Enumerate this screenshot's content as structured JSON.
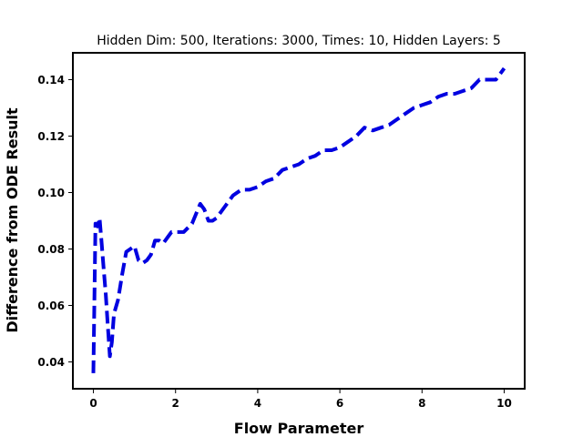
{
  "chart_data": {
    "type": "line",
    "title": "Hidden Dim: 500, Iterations: 3000, Times: 10, Hidden Layers: 5",
    "xlabel": "Flow Parameter",
    "ylabel": "Difference from ODE Result",
    "xlim": [
      -0.5,
      10.5
    ],
    "ylim": [
      0.0305,
      0.1495
    ],
    "xticks": [
      0,
      2,
      4,
      6,
      8,
      10
    ],
    "yticks": [
      0.04,
      0.06,
      0.08,
      0.1,
      0.12,
      0.14
    ],
    "xtick_labels": [
      "0",
      "2",
      "4",
      "6",
      "8",
      "10"
    ],
    "ytick_labels": [
      "0.04",
      "0.06",
      "0.08",
      "0.10",
      "0.12",
      "0.14"
    ],
    "grid": false,
    "line_style": "dashed",
    "line_color": "#0000e0",
    "series": [
      {
        "x": [
          0.0,
          0.05,
          0.1,
          0.15,
          0.2,
          0.25,
          0.3,
          0.35,
          0.4,
          0.45,
          0.5,
          0.6,
          0.7,
          0.8,
          0.9,
          1.0,
          1.1,
          1.2,
          1.3,
          1.4,
          1.5,
          1.6,
          1.7,
          1.8,
          1.9,
          2.0,
          2.2,
          2.4,
          2.6,
          2.7,
          2.8,
          2.9,
          3.0,
          3.2,
          3.4,
          3.6,
          3.8,
          4.0,
          4.2,
          4.4,
          4.6,
          4.8,
          5.0,
          5.2,
          5.4,
          5.6,
          5.8,
          6.0,
          6.2,
          6.4,
          6.6,
          6.8,
          7.0,
          7.2,
          7.4,
          7.6,
          7.8,
          8.0,
          8.2,
          8.4,
          8.6,
          8.8,
          9.0,
          9.2,
          9.4,
          9.6,
          9.8,
          10.0
        ],
        "y": [
          0.036,
          0.089,
          0.088,
          0.091,
          0.082,
          0.073,
          0.064,
          0.053,
          0.042,
          0.047,
          0.057,
          0.062,
          0.071,
          0.079,
          0.08,
          0.081,
          0.076,
          0.075,
          0.076,
          0.078,
          0.083,
          0.083,
          0.082,
          0.084,
          0.086,
          0.086,
          0.086,
          0.089,
          0.096,
          0.094,
          0.09,
          0.09,
          0.091,
          0.095,
          0.099,
          0.101,
          0.101,
          0.102,
          0.104,
          0.105,
          0.108,
          0.109,
          0.11,
          0.112,
          0.113,
          0.115,
          0.115,
          0.116,
          0.118,
          0.12,
          0.123,
          0.122,
          0.123,
          0.124,
          0.126,
          0.128,
          0.13,
          0.131,
          0.132,
          0.134,
          0.135,
          0.135,
          0.136,
          0.137,
          0.14,
          0.14,
          0.14,
          0.144
        ]
      }
    ]
  }
}
